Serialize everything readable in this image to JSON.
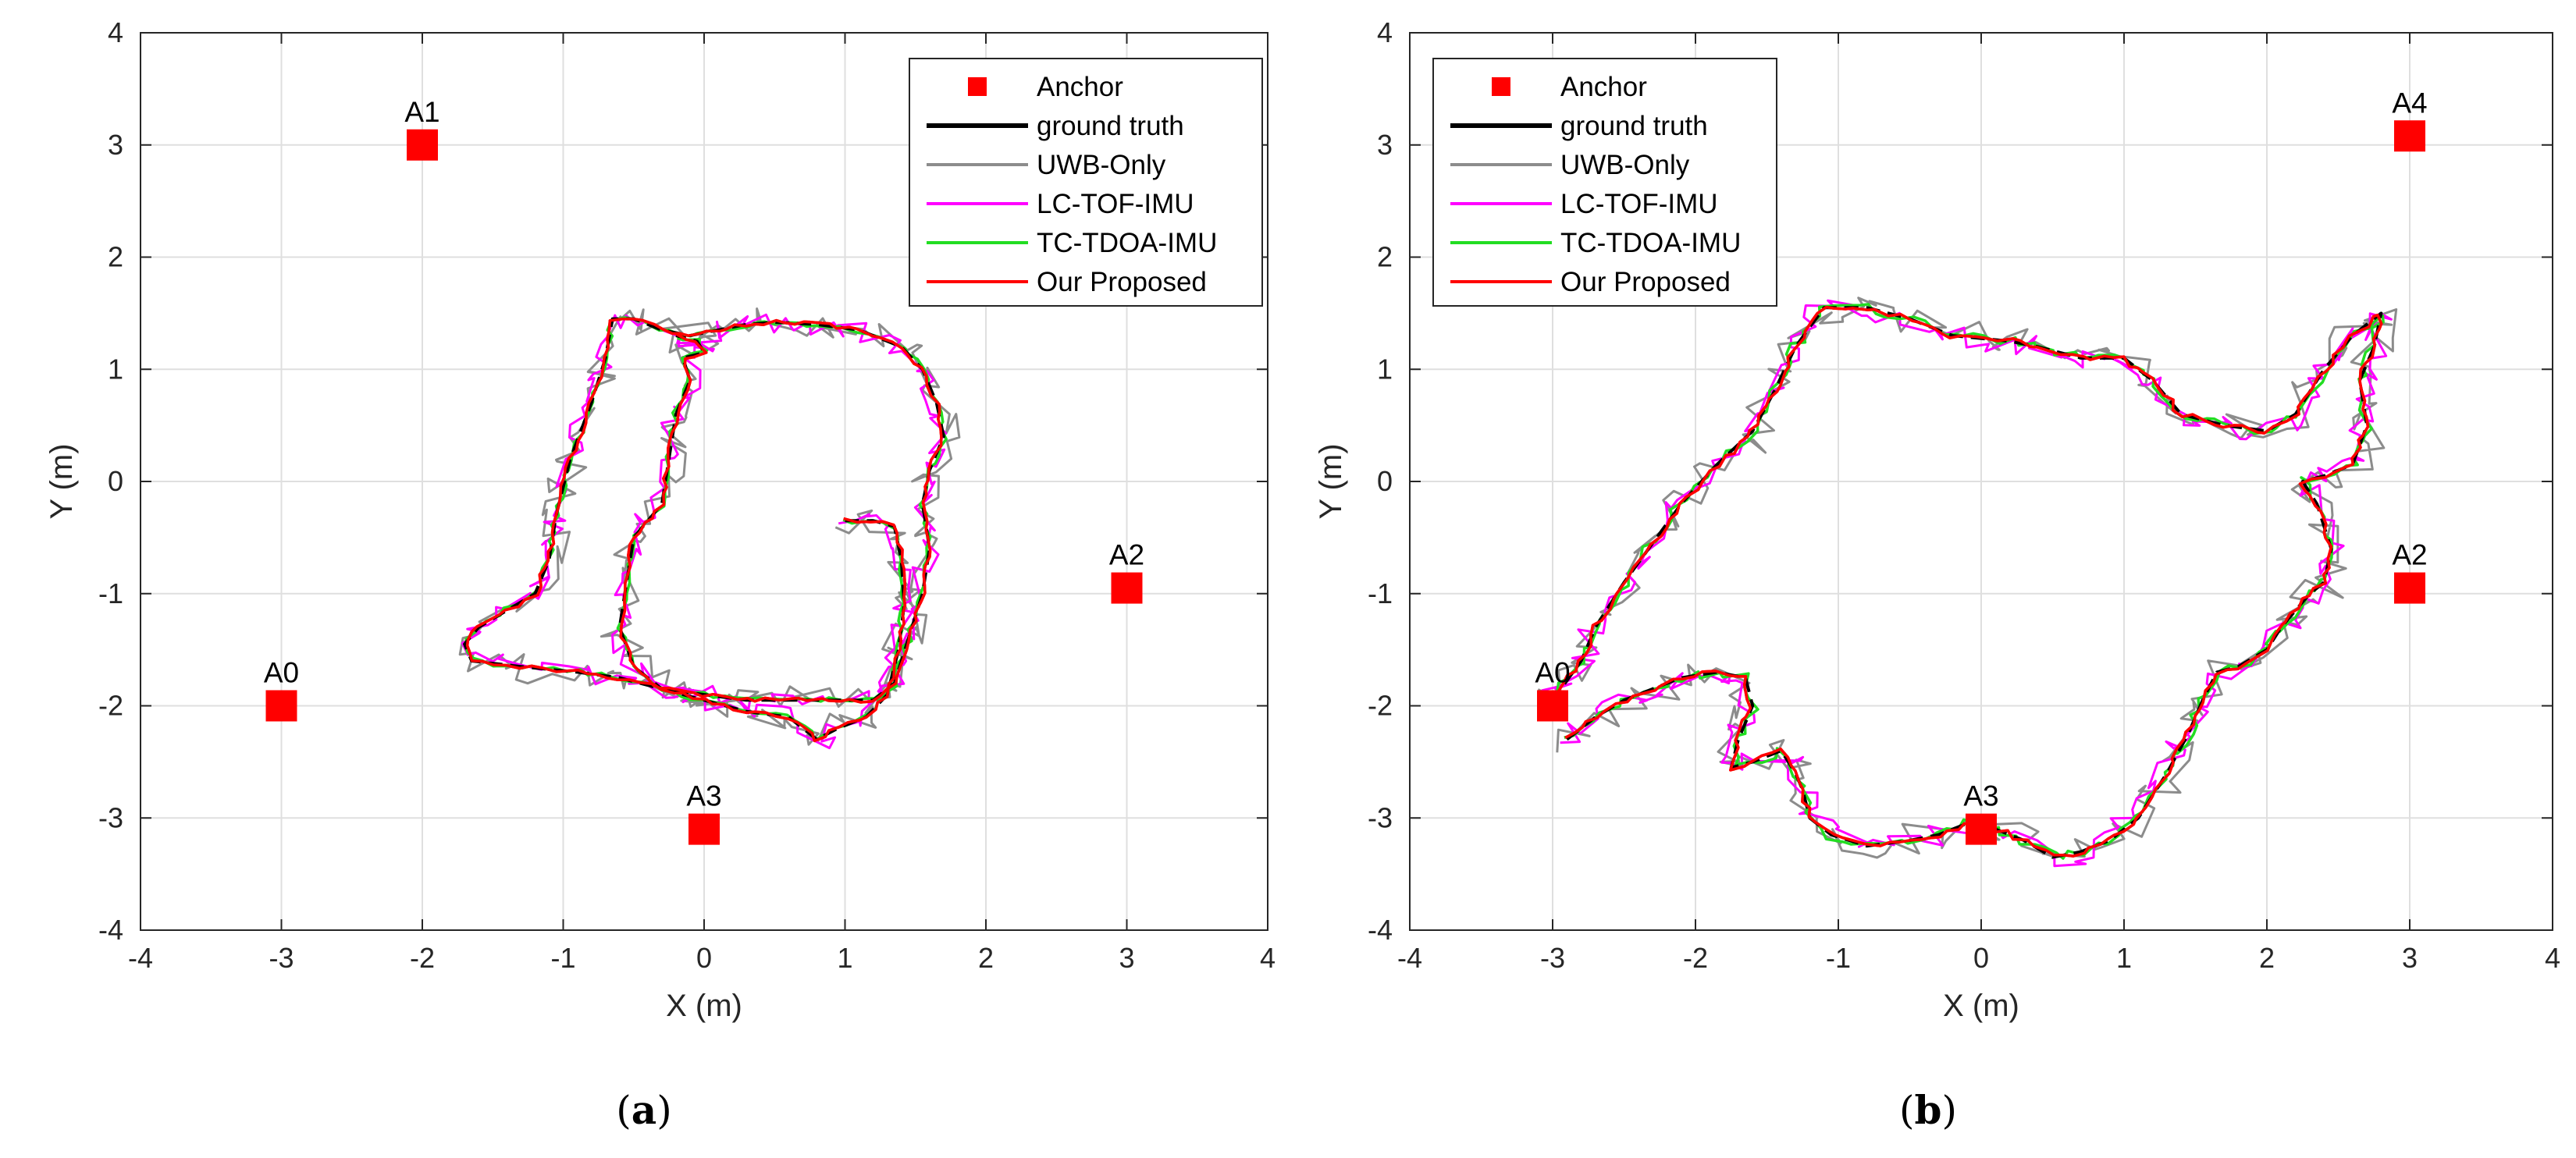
{
  "chart_data": [
    {
      "type": "line",
      "panel": "a",
      "caption": [
        "(",
        "a",
        ")"
      ],
      "xlabel": "X (m)",
      "ylabel": "Y (m)",
      "xlim": [
        -4,
        4
      ],
      "ylim": [
        -4,
        4
      ],
      "xticks": [
        -4,
        -3,
        -2,
        -1,
        0,
        1,
        2,
        3,
        4
      ],
      "yticks": [
        -4,
        -3,
        -2,
        -1,
        0,
        1,
        2,
        3,
        4
      ],
      "grid": true,
      "legend_position": "top-right",
      "legend": [
        "Anchor",
        "ground truth",
        "UWB-Only",
        "LC-TOF-IMU",
        "TC-TDOA-IMU",
        "Our Proposed"
      ],
      "anchors": [
        {
          "name": "A1",
          "x": -2.0,
          "y": 3.0
        },
        {
          "name": "A0",
          "x": -3.0,
          "y": -2.0
        },
        {
          "name": "A2",
          "x": 3.0,
          "y": -0.95
        },
        {
          "name": "A3",
          "x": 0.0,
          "y": -3.1
        }
      ],
      "ground_truth": [
        [
          1.0,
          -0.35
        ],
        [
          1.2,
          -0.35
        ],
        [
          1.35,
          -0.4
        ],
        [
          1.4,
          -0.7
        ],
        [
          1.42,
          -1.1
        ],
        [
          1.38,
          -1.5
        ],
        [
          1.3,
          -1.9
        ],
        [
          1.15,
          -2.1
        ],
        [
          0.95,
          -2.2
        ],
        [
          0.8,
          -2.3
        ],
        [
          0.6,
          -2.1
        ],
        [
          0.3,
          -2.05
        ],
        [
          0.0,
          -1.95
        ],
        [
          -0.3,
          -1.85
        ],
        [
          -0.6,
          -1.75
        ],
        [
          -0.9,
          -1.7
        ],
        [
          -1.3,
          -1.65
        ],
        [
          -1.65,
          -1.6
        ],
        [
          -1.7,
          -1.45
        ],
        [
          -1.6,
          -1.3
        ],
        [
          -1.4,
          -1.15
        ],
        [
          -1.2,
          -1.0
        ],
        [
          -1.1,
          -0.7
        ],
        [
          -1.05,
          -0.3
        ],
        [
          -0.95,
          0.2
        ],
        [
          -0.8,
          0.7
        ],
        [
          -0.7,
          1.1
        ],
        [
          -0.65,
          1.45
        ],
        [
          -0.5,
          1.45
        ],
        [
          -0.3,
          1.35
        ],
        [
          -0.1,
          1.3
        ],
        [
          0.1,
          1.35
        ],
        [
          0.3,
          1.4
        ],
        [
          0.5,
          1.42
        ],
        [
          0.8,
          1.4
        ],
        [
          1.1,
          1.35
        ],
        [
          1.4,
          1.2
        ],
        [
          1.55,
          1.0
        ],
        [
          1.65,
          0.7
        ],
        [
          1.7,
          0.4
        ],
        [
          1.6,
          0.1
        ],
        [
          1.55,
          -0.2
        ],
        [
          1.6,
          -0.6
        ],
        [
          1.55,
          -1.0
        ],
        [
          1.45,
          -1.4
        ],
        [
          1.35,
          -1.8
        ],
        [
          1.2,
          -1.95
        ],
        [
          0.9,
          -1.95
        ],
        [
          0.6,
          -1.95
        ],
        [
          0.3,
          -1.95
        ],
        [
          0.0,
          -1.9
        ],
        [
          -0.3,
          -1.85
        ],
        [
          -0.5,
          -1.65
        ],
        [
          -0.6,
          -1.3
        ],
        [
          -0.55,
          -0.9
        ],
        [
          -0.5,
          -0.5
        ],
        [
          -0.3,
          -0.2
        ],
        [
          -0.25,
          0.2
        ],
        [
          -0.2,
          0.6
        ],
        [
          -0.1,
          0.9
        ],
        [
          -0.15,
          1.1
        ],
        [
          0.0,
          1.15
        ],
        [
          -0.05,
          1.25
        ],
        [
          -0.2,
          1.3
        ]
      ],
      "ground_truth_style": {
        "color": "#000000"
      },
      "series": [
        {
          "name": "UWB-Only",
          "color": "#8c8c8c",
          "noise": 0.13,
          "seed": 11
        },
        {
          "name": "LC-TOF-IMU",
          "color": "#ff00ff",
          "noise": 0.09,
          "seed": 23
        },
        {
          "name": "TC-TDOA-IMU",
          "color": "#22dd22",
          "noise": 0.025,
          "seed": 37
        },
        {
          "name": "Our Proposed",
          "color": "#ff0000",
          "noise": 0.02,
          "seed": 41
        }
      ]
    },
    {
      "type": "line",
      "panel": "b",
      "caption": [
        "(",
        "b",
        ")"
      ],
      "xlabel": "X (m)",
      "ylabel": "Y (m)",
      "xlim": [
        -4,
        4
      ],
      "ylim": [
        -4,
        4
      ],
      "xticks": [
        -4,
        -3,
        -2,
        -1,
        0,
        1,
        2,
        3,
        4
      ],
      "yticks": [
        -4,
        -3,
        -2,
        -1,
        0,
        1,
        2,
        3,
        4
      ],
      "grid": true,
      "legend_position": "top-left",
      "legend": [
        "Anchor",
        "ground truth",
        "UWB-Only",
        "LC-TOF-IMU",
        "TC-TDOA-IMU",
        "Our Proposed"
      ],
      "anchors": [
        {
          "name": "A4",
          "x": 3.0,
          "y": 3.08
        },
        {
          "name": "A0",
          "x": -3.0,
          "y": -2.0
        },
        {
          "name": "A2",
          "x": 3.0,
          "y": -0.95
        },
        {
          "name": "A3",
          "x": 0.0,
          "y": -3.1
        }
      ],
      "ground_truth": [
        [
          -2.9,
          -2.3
        ],
        [
          -2.7,
          -2.1
        ],
        [
          -2.5,
          -1.95
        ],
        [
          -2.3,
          -1.85
        ],
        [
          -2.1,
          -1.75
        ],
        [
          -1.85,
          -1.7
        ],
        [
          -1.65,
          -1.75
        ],
        [
          -1.6,
          -2.0
        ],
        [
          -1.7,
          -2.3
        ],
        [
          -1.75,
          -2.55
        ],
        [
          -1.6,
          -2.5
        ],
        [
          -1.4,
          -2.4
        ],
        [
          -1.3,
          -2.6
        ],
        [
          -1.25,
          -2.75
        ],
        [
          -1.2,
          -3.0
        ],
        [
          -1.05,
          -3.15
        ],
        [
          -0.8,
          -3.25
        ],
        [
          -0.5,
          -3.2
        ],
        [
          -0.3,
          -3.15
        ],
        [
          -0.1,
          -3.05
        ],
        [
          0.1,
          -3.1
        ],
        [
          0.3,
          -3.2
        ],
        [
          0.5,
          -3.35
        ],
        [
          0.7,
          -3.3
        ],
        [
          0.9,
          -3.2
        ],
        [
          1.1,
          -3.0
        ],
        [
          1.3,
          -2.6
        ],
        [
          1.45,
          -2.25
        ],
        [
          1.55,
          -1.95
        ],
        [
          1.65,
          -1.7
        ],
        [
          1.8,
          -1.65
        ],
        [
          2.0,
          -1.5
        ],
        [
          2.1,
          -1.3
        ],
        [
          2.3,
          -1.0
        ],
        [
          2.4,
          -0.9
        ],
        [
          2.45,
          -0.6
        ],
        [
          2.35,
          -0.2
        ],
        [
          2.25,
          0.0
        ],
        [
          2.4,
          0.05
        ],
        [
          2.6,
          0.15
        ],
        [
          2.7,
          0.5
        ],
        [
          2.65,
          0.9
        ],
        [
          2.75,
          1.2
        ],
        [
          2.8,
          1.5
        ],
        [
          2.6,
          1.3
        ],
        [
          2.4,
          1.0
        ],
        [
          2.2,
          0.6
        ],
        [
          2.0,
          0.45
        ],
        [
          1.7,
          0.5
        ],
        [
          1.4,
          0.6
        ],
        [
          1.2,
          0.9
        ],
        [
          1.0,
          1.1
        ],
        [
          0.7,
          1.1
        ],
        [
          0.4,
          1.2
        ],
        [
          0.2,
          1.25
        ],
        [
          -0.2,
          1.3
        ],
        [
          -0.5,
          1.45
        ],
        [
          -0.8,
          1.55
        ],
        [
          -1.1,
          1.55
        ],
        [
          -1.3,
          1.2
        ],
        [
          -1.45,
          0.8
        ],
        [
          -1.6,
          0.45
        ],
        [
          -1.85,
          0.15
        ],
        [
          -2.1,
          -0.2
        ],
        [
          -2.3,
          -0.55
        ],
        [
          -2.5,
          -0.9
        ],
        [
          -2.7,
          -1.3
        ],
        [
          -2.8,
          -1.6
        ],
        [
          -3.0,
          -1.95
        ]
      ],
      "ground_truth_style": {
        "color": "#000000"
      },
      "series": [
        {
          "name": "UWB-Only",
          "color": "#8c8c8c",
          "noise": 0.14,
          "seed": 53
        },
        {
          "name": "LC-TOF-IMU",
          "color": "#ff00ff",
          "noise": 0.1,
          "seed": 67
        },
        {
          "name": "TC-TDOA-IMU",
          "color": "#22dd22",
          "noise": 0.04,
          "seed": 71
        },
        {
          "name": "Our Proposed",
          "color": "#ff0000",
          "noise": 0.025,
          "seed": 83
        }
      ]
    }
  ]
}
